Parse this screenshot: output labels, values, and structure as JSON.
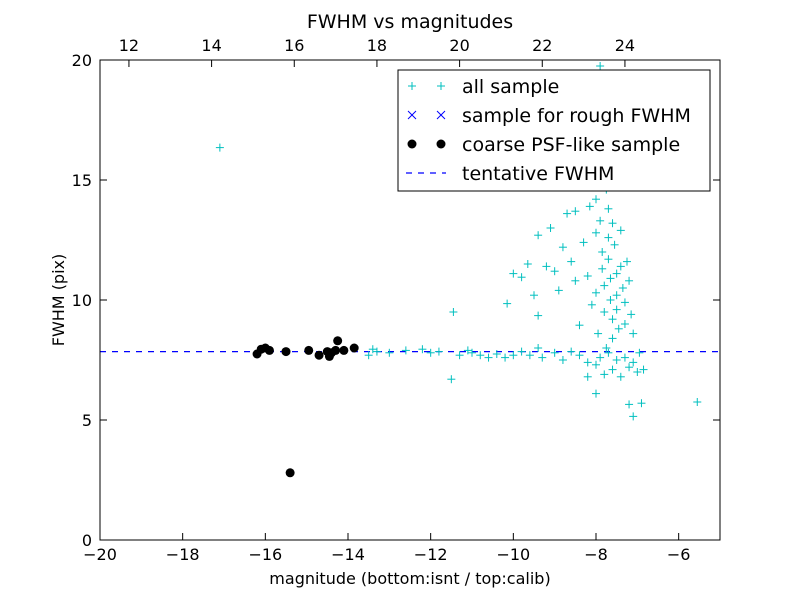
{
  "chart_data": {
    "type": "scatter",
    "title": "FWHM vs magnitudes",
    "xlabel": "magnitude (bottom:isnt / top:calib)",
    "ylabel": "FWHM (pix)",
    "xlim": [
      -20,
      -5
    ],
    "ylim": [
      0,
      20
    ],
    "x_ticks": [
      -20,
      -18,
      -16,
      -14,
      -12,
      -10,
      -8,
      -6
    ],
    "x_tick_labels": [
      "−20",
      "−18",
      "−16",
      "−14",
      "−12",
      "−10",
      "−8",
      "−6"
    ],
    "y_ticks": [
      0,
      5,
      10,
      15,
      20
    ],
    "y_tick_labels": [
      "0",
      "5",
      "10",
      "15",
      "20"
    ],
    "top_axis": {
      "offset": 31.3,
      "ticks": [
        12,
        14,
        16,
        18,
        20,
        22,
        24
      ],
      "tick_labels": [
        "12",
        "14",
        "16",
        "18",
        "20",
        "22",
        "24"
      ]
    },
    "grid": false,
    "legend_position": "top-right",
    "tentative_fwhm": 7.85,
    "series": [
      {
        "name": "all sample",
        "marker": "+",
        "color": "#00bfbf",
        "points": [
          [
            -17.1,
            16.35
          ],
          [
            -11.45,
            9.5
          ],
          [
            -11.5,
            6.7
          ],
          [
            -5.55,
            5.75
          ],
          [
            -6.9,
            5.7
          ],
          [
            -7.2,
            5.65
          ],
          [
            -7.1,
            5.15
          ],
          [
            -6.85,
            7.1
          ],
          [
            -13.5,
            7.7
          ],
          [
            -13.4,
            7.95
          ],
          [
            -13.3,
            7.85
          ],
          [
            -13.0,
            7.8
          ],
          [
            -12.6,
            7.9
          ],
          [
            -12.2,
            7.95
          ],
          [
            -12.0,
            7.8
          ],
          [
            -11.8,
            7.85
          ],
          [
            -11.3,
            7.7
          ],
          [
            -11.1,
            7.9
          ],
          [
            -11.0,
            7.8
          ],
          [
            -10.8,
            7.7
          ],
          [
            -10.6,
            7.6
          ],
          [
            -10.4,
            7.75
          ],
          [
            -10.2,
            7.6
          ],
          [
            -10.0,
            7.7
          ],
          [
            -9.8,
            7.85
          ],
          [
            -9.6,
            7.7
          ],
          [
            -9.4,
            8.0
          ],
          [
            -9.3,
            7.6
          ],
          [
            -9.0,
            7.8
          ],
          [
            -8.8,
            7.5
          ],
          [
            -8.6,
            7.85
          ],
          [
            -8.4,
            7.7
          ],
          [
            -8.2,
            7.4
          ],
          [
            -10.15,
            9.85
          ],
          [
            -10.0,
            11.1
          ],
          [
            -9.8,
            10.95
          ],
          [
            -9.65,
            11.5
          ],
          [
            -9.5,
            10.2
          ],
          [
            -9.4,
            9.35
          ],
          [
            -9.4,
            12.7
          ],
          [
            -9.2,
            11.4
          ],
          [
            -9.1,
            13.0
          ],
          [
            -9.0,
            11.2
          ],
          [
            -8.9,
            10.4
          ],
          [
            -8.8,
            12.2
          ],
          [
            -8.7,
            13.6
          ],
          [
            -8.6,
            11.6
          ],
          [
            -8.5,
            13.7
          ],
          [
            -8.5,
            10.8
          ],
          [
            -8.4,
            8.95
          ],
          [
            -8.3,
            12.4
          ],
          [
            -8.2,
            11.0
          ],
          [
            -8.15,
            13.9
          ],
          [
            -8.1,
            9.8
          ],
          [
            -8.0,
            14.2
          ],
          [
            -8.0,
            12.8
          ],
          [
            -8.0,
            10.3
          ],
          [
            -7.95,
            8.6
          ],
          [
            -7.9,
            15.1
          ],
          [
            -7.9,
            13.3
          ],
          [
            -7.85,
            12.0
          ],
          [
            -7.85,
            11.3
          ],
          [
            -7.8,
            10.6
          ],
          [
            -7.8,
            9.5
          ],
          [
            -7.75,
            8.0
          ],
          [
            -7.75,
            14.6
          ],
          [
            -7.7,
            13.8
          ],
          [
            -7.7,
            12.6
          ],
          [
            -7.7,
            11.7
          ],
          [
            -7.65,
            10.9
          ],
          [
            -7.65,
            10.0
          ],
          [
            -7.6,
            9.2
          ],
          [
            -7.6,
            8.4
          ],
          [
            -7.6,
            13.2
          ],
          [
            -7.55,
            12.3
          ],
          [
            -7.5,
            11.1
          ],
          [
            -7.5,
            10.2
          ],
          [
            -7.5,
            9.6
          ],
          [
            -7.45,
            8.8
          ],
          [
            -7.4,
            12.9
          ],
          [
            -7.4,
            11.4
          ],
          [
            -7.35,
            10.5
          ],
          [
            -7.3,
            9.9
          ],
          [
            -7.3,
            9.0
          ],
          [
            -7.25,
            11.6
          ],
          [
            -7.2,
            10.8
          ],
          [
            -7.15,
            9.4
          ],
          [
            -7.1,
            8.6
          ],
          [
            -8.0,
            6.1
          ],
          [
            -8.2,
            6.8
          ],
          [
            -8.0,
            7.3
          ],
          [
            -7.8,
            6.9
          ],
          [
            -7.6,
            7.1
          ],
          [
            -7.4,
            6.8
          ],
          [
            -7.2,
            7.2
          ],
          [
            -7.0,
            7.0
          ],
          [
            -6.95,
            7.8
          ],
          [
            -7.9,
            7.6
          ],
          [
            -7.7,
            7.8
          ],
          [
            -7.5,
            7.5
          ],
          [
            -7.3,
            7.6
          ],
          [
            -7.1,
            7.4
          ],
          [
            -7.9,
            19.75
          ],
          [
            -7.85,
            16.0
          ]
        ]
      },
      {
        "name": "sample for rough FWHM",
        "marker": "x",
        "color": "#0000ff",
        "points": []
      },
      {
        "name": "coarse PSF-like sample",
        "marker": "o",
        "color": "#000000",
        "points": [
          [
            -16.2,
            7.75
          ],
          [
            -16.1,
            7.95
          ],
          [
            -16.0,
            8.0
          ],
          [
            -15.9,
            7.9
          ],
          [
            -15.5,
            7.85
          ],
          [
            -15.4,
            2.8
          ],
          [
            -14.95,
            7.9
          ],
          [
            -14.7,
            7.7
          ],
          [
            -14.5,
            7.85
          ],
          [
            -14.45,
            7.65
          ],
          [
            -14.4,
            7.8
          ],
          [
            -14.3,
            7.9
          ],
          [
            -14.25,
            8.3
          ],
          [
            -14.1,
            7.9
          ],
          [
            -13.85,
            8.0
          ]
        ]
      },
      {
        "name": "tentative FWHM",
        "marker": "--",
        "color": "#0000ff",
        "points": []
      }
    ]
  }
}
